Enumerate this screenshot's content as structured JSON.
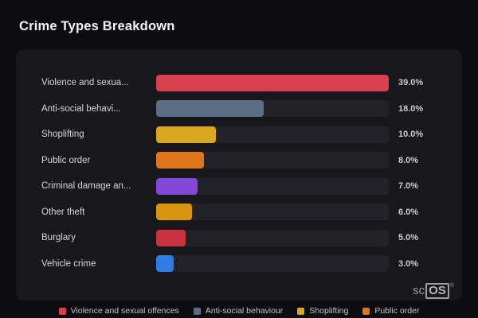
{
  "title": "Crime Types Breakdown",
  "chart_data": {
    "type": "bar",
    "orientation": "horizontal",
    "title": "Crime Types Breakdown",
    "xlim": [
      0,
      39
    ],
    "grid": false,
    "legend_position": "bottom",
    "categories": [
      "Violence and sexua...",
      "Anti-social behavi...",
      "Shoplifting",
      "Public order",
      "Criminal damage an...",
      "Other theft",
      "Burglary",
      "Vehicle crime"
    ],
    "values": [
      39.0,
      18.0,
      10.0,
      8.0,
      7.0,
      6.0,
      5.0,
      3.0
    ],
    "value_labels": [
      "39.0%",
      "18.0%",
      "10.0%",
      "8.0%",
      "7.0%",
      "6.0%",
      "5.0%",
      "3.0%"
    ],
    "bar_colors": [
      "#d8404f",
      "#5c6e85",
      "#d9a81f",
      "#e0761c",
      "#8247d6",
      "#d8950f",
      "#c9333f",
      "#2e7ce5"
    ]
  },
  "legend": {
    "items": [
      {
        "label": "Violence and sexual offences",
        "color": "#d8404f"
      },
      {
        "label": "Anti-social behaviour",
        "color": "#5c6e85"
      },
      {
        "label": "Shoplifting",
        "color": "#d9a81f"
      },
      {
        "label": "Public order",
        "color": "#e0761c"
      }
    ]
  },
  "watermark": {
    "part1": "sc",
    "part2": "OS",
    "reg": "®"
  },
  "colors": {
    "page_bg": "#0d0d11",
    "panel_bg": "#17171c",
    "track_bg": "#222228",
    "title_text": "#f5f5f7",
    "label_text": "#d6d6db",
    "value_text": "#cbcbd1"
  }
}
